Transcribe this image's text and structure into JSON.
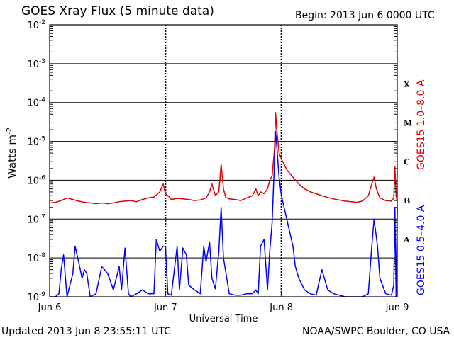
{
  "header": {
    "title": "GOES Xray Flux (5 minute data)",
    "begin": "Begin:  2013 Jun 6 0000 UTC"
  },
  "footer": {
    "updated": "Updated 2013 Jun  8 23:55:11 UTC",
    "source": "NOAA/SWPC Boulder, CO USA"
  },
  "colors": {
    "long": "#e00000",
    "short": "#0000ff",
    "axis": "#000000"
  },
  "chart_data": {
    "type": "line",
    "ylabel": "Watts m",
    "ylabel_sup": "-2",
    "xlabel": "Universal Time",
    "yscale": "log",
    "ylim": [
      1e-09,
      0.01
    ],
    "xlim": [
      0,
      3
    ],
    "y_ticks": [
      {
        "base": "10",
        "exp": "-9",
        "value": 1e-09
      },
      {
        "base": "10",
        "exp": "-8",
        "value": 1e-08
      },
      {
        "base": "10",
        "exp": "-7",
        "value": 1e-07
      },
      {
        "base": "10",
        "exp": "-6",
        "value": 1e-06
      },
      {
        "base": "10",
        "exp": "-5",
        "value": 1e-05
      },
      {
        "base": "10",
        "exp": "-4",
        "value": 0.0001
      },
      {
        "base": "10",
        "exp": "-3",
        "value": 0.001
      },
      {
        "base": "10",
        "exp": "-2",
        "value": 0.01
      }
    ],
    "x_ticks": [
      {
        "label": "Jun 6",
        "value": 0
      },
      {
        "label": "Jun 7",
        "value": 1
      },
      {
        "label": "Jun 8",
        "value": 2
      },
      {
        "label": "Jun 9",
        "value": 3
      }
    ],
    "flare_classes": [
      {
        "label": "A",
        "value": 3e-08
      },
      {
        "label": "B",
        "value": 3e-07
      },
      {
        "label": "C",
        "value": 3e-06
      },
      {
        "label": "M",
        "value": 3e-05
      },
      {
        "label": "X",
        "value": 0.0003
      }
    ],
    "series": [
      {
        "name": "GOES15 1.0–8.0 A",
        "color": "#e00000",
        "x": [
          0.0,
          0.05,
          0.1,
          0.15,
          0.2,
          0.25,
          0.3,
          0.35,
          0.4,
          0.45,
          0.5,
          0.55,
          0.6,
          0.65,
          0.7,
          0.75,
          0.8,
          0.85,
          0.9,
          0.95,
          0.98,
          1.0,
          1.03,
          1.05,
          1.1,
          1.15,
          1.2,
          1.25,
          1.3,
          1.35,
          1.38,
          1.4,
          1.43,
          1.46,
          1.48,
          1.5,
          1.52,
          1.55,
          1.6,
          1.65,
          1.7,
          1.75,
          1.78,
          1.8,
          1.82,
          1.85,
          1.88,
          1.9,
          1.92,
          1.94,
          1.95,
          1.96,
          1.97,
          1.98,
          2.0,
          2.05,
          2.1,
          2.15,
          2.2,
          2.25,
          2.3,
          2.35,
          2.4,
          2.45,
          2.5,
          2.55,
          2.6,
          2.65,
          2.7,
          2.75,
          2.78,
          2.8,
          2.82,
          2.85,
          2.9,
          2.95,
          2.97,
          2.98,
          2.99,
          3.0
        ],
        "y": [
          2.6e-07,
          2.7e-07,
          3e-07,
          3.5e-07,
          3.2e-07,
          2.9e-07,
          2.7e-07,
          2.6e-07,
          2.5e-07,
          2.6e-07,
          2.5e-07,
          2.6e-07,
          2.8e-07,
          2.9e-07,
          3e-07,
          2.8e-07,
          3.2e-07,
          3.5e-07,
          3.7e-07,
          5e-07,
          8e-07,
          4.5e-07,
          3.8e-07,
          3.2e-07,
          3.4e-07,
          3.3e-07,
          3.2e-07,
          3e-07,
          3.1e-07,
          3.5e-07,
          5e-07,
          8e-07,
          4e-07,
          5e-07,
          2.6e-06,
          6e-07,
          3.6e-07,
          3.3e-07,
          3.2e-07,
          3e-07,
          3.5e-07,
          4e-07,
          6e-07,
          4e-07,
          5e-07,
          4.5e-07,
          6e-07,
          1e-06,
          1.3e-06,
          6e-06,
          5.5e-05,
          2e-05,
          1e-05,
          5e-06,
          3.5e-06,
          1.8e-06,
          1.2e-06,
          8e-07,
          6e-07,
          5e-07,
          4.5e-07,
          4e-07,
          3.6e-07,
          3.3e-07,
          3.1e-07,
          2.9e-07,
          2.8e-07,
          2.7e-07,
          2.9e-07,
          4e-07,
          8e-07,
          1.2e-06,
          6e-07,
          3.5e-07,
          3e-07,
          2.9e-07,
          3.5e-07,
          2.2e-06,
          4e-07,
          2.8e-07
        ]
      },
      {
        "name": "GOES15 0.5–4.0 A",
        "color": "#0000ff",
        "x": [
          0.0,
          0.05,
          0.08,
          0.1,
          0.12,
          0.15,
          0.2,
          0.22,
          0.25,
          0.28,
          0.3,
          0.32,
          0.35,
          0.4,
          0.45,
          0.5,
          0.55,
          0.6,
          0.62,
          0.65,
          0.68,
          0.7,
          0.75,
          0.8,
          0.85,
          0.9,
          0.92,
          0.95,
          0.98,
          1.0,
          1.02,
          1.05,
          1.1,
          1.12,
          1.15,
          1.18,
          1.2,
          1.25,
          1.3,
          1.33,
          1.35,
          1.38,
          1.4,
          1.43,
          1.46,
          1.48,
          1.5,
          1.55,
          1.6,
          1.65,
          1.7,
          1.75,
          1.78,
          1.8,
          1.82,
          1.85,
          1.88,
          1.9,
          1.92,
          1.94,
          1.95,
          1.96,
          1.97,
          1.98,
          2.0,
          2.05,
          2.1,
          2.12,
          2.15,
          2.2,
          2.25,
          2.3,
          2.35,
          2.4,
          2.45,
          2.5,
          2.55,
          2.6,
          2.65,
          2.7,
          2.75,
          2.78,
          2.8,
          2.83,
          2.85,
          2.9,
          2.95,
          2.97,
          2.98,
          2.99,
          3.0
        ],
        "y": [
          1e-09,
          1e-09,
          1.2e-09,
          5e-09,
          1.2e-08,
          1e-09,
          4e-09,
          2e-08,
          8e-09,
          3e-09,
          5e-09,
          4e-09,
          1e-09,
          1.2e-09,
          6e-09,
          4e-09,
          1.5e-09,
          6e-09,
          1.5e-09,
          1.8e-08,
          1.2e-09,
          1e-09,
          1.2e-09,
          1.5e-09,
          1.2e-09,
          1.2e-09,
          3e-08,
          1.5e-08,
          2e-08,
          2e-08,
          1.2e-09,
          1.1e-09,
          2e-08,
          1.5e-09,
          1.8e-08,
          1.2e-08,
          2e-09,
          1.5e-09,
          1.2e-09,
          2e-08,
          8e-09,
          2.6e-08,
          3e-09,
          1.6e-09,
          1.5e-08,
          2e-07,
          1e-08,
          1.2e-09,
          1.1e-09,
          1.1e-09,
          1.2e-09,
          1.2e-09,
          1.5e-09,
          1.2e-09,
          2e-08,
          3e-08,
          1.5e-09,
          1.5e-08,
          8e-08,
          3e-06,
          1.8e-05,
          8e-06,
          3e-06,
          1.2e-06,
          4e-07,
          9e-08,
          2e-08,
          6e-09,
          3e-09,
          1.5e-09,
          1.2e-09,
          1.1e-09,
          5e-09,
          1.5e-09,
          1.2e-09,
          1.1e-09,
          1e-09,
          1e-09,
          1e-09,
          1e-09,
          1.2e-09,
          2e-08,
          1e-07,
          2e-08,
          3e-09,
          1.2e-09,
          1.1e-09,
          2e-09,
          2e-07,
          1e-09,
          2e-07
        ]
      }
    ]
  }
}
